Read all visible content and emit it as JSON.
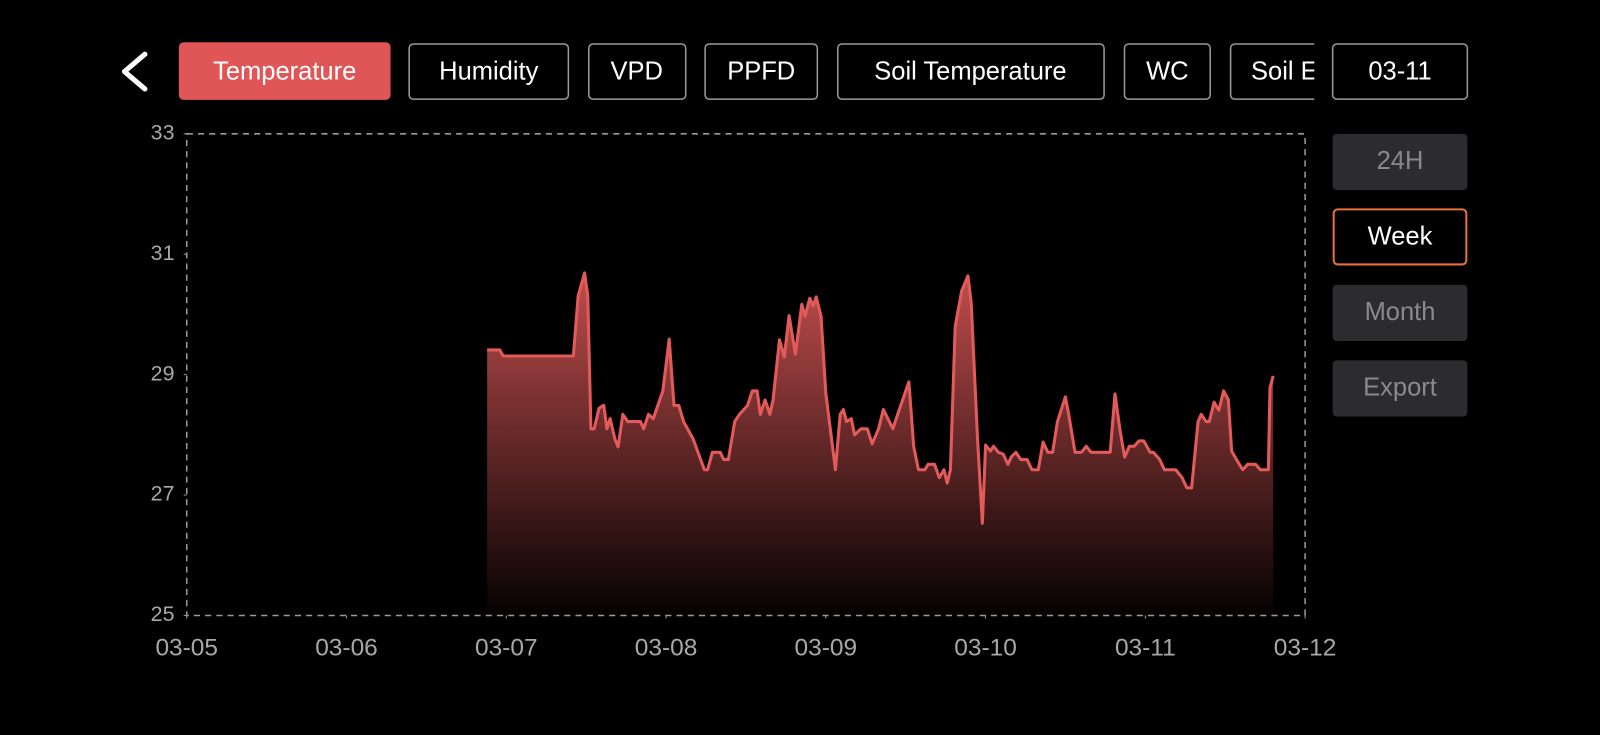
{
  "tabs": [
    "Temperature",
    "Humidity",
    "VPD",
    "PPFD",
    "Soil Temperature",
    "WC",
    "Soil EC"
  ],
  "date": "03-11",
  "ranges": [
    "24H",
    "Week",
    "Month"
  ],
  "export": "Export",
  "chart_data": {
    "type": "area",
    "color": "#e35a5a",
    "x": [
      1.88,
      1.96,
      1.98,
      2.42,
      2.45,
      2.49,
      2.51,
      2.53,
      2.55,
      2.58,
      2.61,
      2.63,
      2.65,
      2.68,
      2.7,
      2.73,
      2.76,
      2.84,
      2.86,
      2.89,
      2.92,
      2.98,
      3.02,
      3.05,
      3.08,
      3.11,
      3.17,
      3.24,
      3.26,
      3.29,
      3.34,
      3.36,
      3.39,
      3.43,
      3.46,
      3.51,
      3.54,
      3.57,
      3.59,
      3.62,
      3.65,
      3.67,
      3.71,
      3.74,
      3.77,
      3.81,
      3.85,
      3.87,
      3.9,
      3.92,
      3.94,
      3.97,
      4.0,
      4.06,
      4.09,
      4.11,
      4.13,
      4.16,
      4.18,
      4.22,
      4.26,
      4.29,
      4.33,
      4.36,
      4.42,
      4.45,
      4.52,
      4.55,
      4.58,
      4.62,
      4.64,
      4.68,
      4.71,
      4.74,
      4.76,
      4.78,
      4.81,
      4.85,
      4.89,
      4.91,
      4.95,
      4.98,
      5.0,
      5.03,
      5.05,
      5.08,
      5.11,
      5.14,
      5.16,
      5.19,
      5.22,
      5.26,
      5.29,
      5.33,
      5.36,
      5.39,
      5.42,
      5.45,
      5.5,
      5.52,
      5.56,
      5.6,
      5.63,
      5.66,
      5.78,
      5.81,
      5.84,
      5.87,
      5.9,
      5.93,
      5.96,
      5.99,
      6.03,
      6.05,
      6.09,
      6.12,
      6.19,
      6.23,
      6.26,
      6.29,
      6.33,
      6.35,
      6.38,
      6.4,
      6.43,
      6.46,
      6.49,
      6.52,
      6.54,
      6.57,
      6.61,
      6.64,
      6.69,
      6.72,
      6.77,
      6.78,
      6.8
    ],
    "values": [
      29.41,
      29.41,
      29.31,
      29.31,
      30.31,
      30.69,
      30.31,
      28.1,
      28.1,
      28.44,
      28.49,
      28.1,
      28.27,
      27.93,
      27.8,
      28.34,
      28.22,
      28.22,
      28.1,
      28.34,
      28.27,
      28.73,
      29.59,
      28.49,
      28.49,
      28.22,
      27.93,
      27.42,
      27.42,
      27.71,
      27.71,
      27.59,
      27.59,
      28.22,
      28.34,
      28.49,
      28.73,
      28.73,
      28.34,
      28.58,
      28.34,
      28.58,
      29.58,
      29.29,
      29.98,
      29.34,
      30.17,
      29.97,
      30.27,
      30.14,
      30.29,
      29.97,
      28.69,
      27.42,
      28.34,
      28.42,
      28.22,
      28.27,
      28.0,
      28.1,
      28.1,
      27.85,
      28.1,
      28.42,
      28.1,
      28.34,
      28.88,
      27.81,
      27.42,
      27.42,
      27.51,
      27.51,
      27.29,
      27.42,
      27.2,
      27.42,
      29.8,
      30.39,
      30.64,
      30.19,
      27.93,
      26.53,
      27.83,
      27.73,
      27.81,
      27.71,
      27.68,
      27.51,
      27.63,
      27.71,
      27.59,
      27.59,
      27.42,
      27.42,
      27.88,
      27.71,
      27.71,
      28.22,
      28.63,
      28.34,
      27.71,
      27.71,
      27.81,
      27.71,
      27.71,
      28.68,
      28.1,
      27.63,
      27.81,
      27.81,
      27.9,
      27.9,
      27.71,
      27.71,
      27.59,
      27.42,
      27.42,
      27.29,
      27.12,
      27.12,
      28.22,
      28.34,
      28.22,
      28.22,
      28.54,
      28.41,
      28.73,
      28.58,
      27.73,
      27.59,
      27.42,
      27.51,
      27.51,
      27.42,
      27.42,
      28.78,
      28.98
    ],
    "xlim": [
      0,
      7
    ],
    "xticks": [
      {
        "value": 0,
        "label": "03-05"
      },
      {
        "value": 1,
        "label": "03-06"
      },
      {
        "value": 2,
        "label": "03-07"
      },
      {
        "value": 3,
        "label": "03-08"
      },
      {
        "value": 4,
        "label": "03-09"
      },
      {
        "value": 5,
        "label": "03-10"
      },
      {
        "value": 6,
        "label": "03-11"
      },
      {
        "value": 7,
        "label": "03-12"
      }
    ],
    "ylim": [
      25,
      33
    ],
    "yticks": [
      25,
      27,
      29,
      31,
      33
    ]
  }
}
